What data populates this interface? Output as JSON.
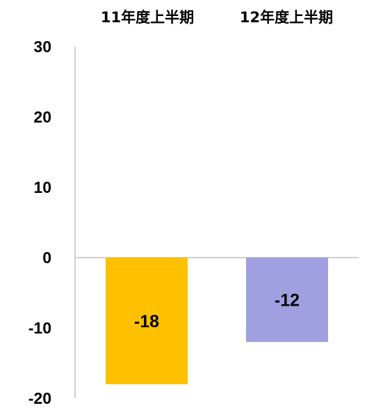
{
  "chart_data": {
    "type": "bar",
    "categories": [
      "11年度上半期",
      "12年度上半期"
    ],
    "values": [
      -18,
      -12
    ],
    "data_labels": [
      "-18",
      "-12"
    ],
    "colors": [
      "#FFC000",
      "#A0A0E0"
    ],
    "ylim": [
      -20,
      30
    ],
    "yticks": [
      "30",
      "20",
      "10",
      "0",
      "-10",
      "-20"
    ],
    "category_axis_position": "top",
    "grid": false,
    "legend": "none"
  }
}
